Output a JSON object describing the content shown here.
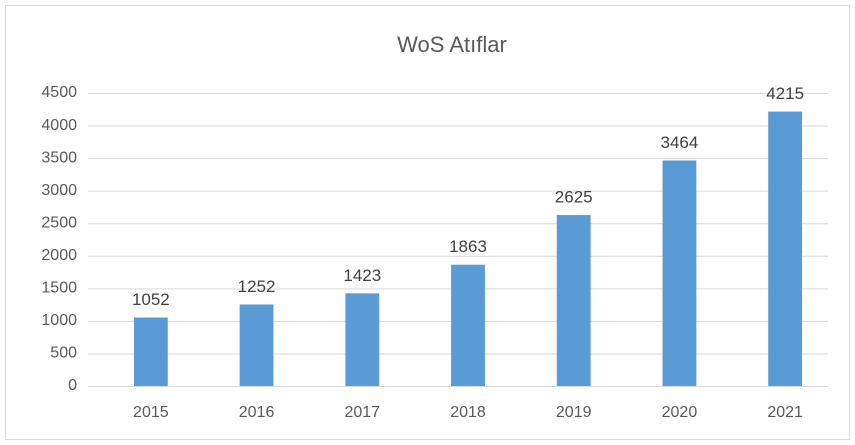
{
  "chart_data": {
    "type": "bar",
    "title": "WoS Atıflar",
    "categories": [
      "2015",
      "2016",
      "2017",
      "2018",
      "2019",
      "2020",
      "2021"
    ],
    "values": [
      1052,
      1252,
      1423,
      1863,
      2625,
      3464,
      4215
    ],
    "color": "#5b9bd5",
    "ylim": [
      0,
      4500
    ],
    "yticks": [
      0,
      500,
      1000,
      1500,
      2000,
      2500,
      3000,
      3500,
      4000,
      4500
    ],
    "grid": true,
    "data_labels": true
  }
}
